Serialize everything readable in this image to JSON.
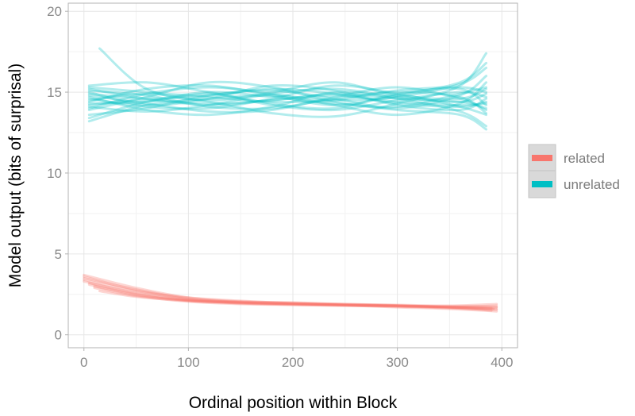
{
  "chart_data": {
    "type": "line",
    "xlabel": "Ordinal position within Block",
    "ylabel": "Model output (bits of surprisal)",
    "xlim": [
      -15,
      415
    ],
    "ylim": [
      -0.8,
      20.5
    ],
    "x_ticks": [
      0,
      100,
      200,
      300,
      400
    ],
    "y_ticks": [
      0,
      5,
      10,
      15,
      20
    ],
    "grid": true,
    "legend_position": "right",
    "legend": [
      {
        "name": "related",
        "color": "#F8766D"
      },
      {
        "name": "unrelated",
        "color": "#00BFC4"
      }
    ],
    "groups": [
      {
        "name": "unrelated",
        "color": "#00BFC4",
        "series": [
          {
            "x": [
              5,
              60,
              120,
              180,
              240,
              300,
              360,
              385
            ],
            "y": [
              13.2,
              14.2,
              14.6,
              14.8,
              14.5,
              14.7,
              15.5,
              16.5
            ]
          },
          {
            "x": [
              5,
              60,
              120,
              180,
              240,
              300,
              360,
              385
            ],
            "y": [
              15.2,
              14.6,
              14.3,
              14.5,
              14.9,
              14.6,
              14.4,
              14.0
            ]
          },
          {
            "x": [
              5,
              60,
              120,
              180,
              240,
              300,
              360,
              385
            ],
            "y": [
              14.0,
              14.9,
              15.3,
              14.9,
              14.2,
              13.6,
              14.3,
              15.6
            ]
          },
          {
            "x": [
              5,
              60,
              120,
              180,
              240,
              300,
              360,
              385
            ],
            "y": [
              14.6,
              14.1,
              14.0,
              14.6,
              15.4,
              14.9,
              14.1,
              13.6
            ]
          },
          {
            "x": [
              15,
              60,
              120,
              180,
              240,
              300,
              360,
              385
            ],
            "y": [
              17.7,
              15.2,
              14.5,
              15.0,
              15.6,
              14.8,
              14.6,
              15.2
            ]
          },
          {
            "x": [
              5,
              60,
              120,
              180,
              240,
              300,
              360,
              385
            ],
            "y": [
              14.3,
              14.4,
              14.9,
              14.2,
              13.9,
              14.5,
              15.0,
              14.7
            ]
          },
          {
            "x": [
              5,
              60,
              120,
              180,
              240,
              300,
              360,
              385
            ],
            "y": [
              13.6,
              14.0,
              14.8,
              15.1,
              14.6,
              14.0,
              14.8,
              16.0
            ]
          },
          {
            "x": [
              5,
              60,
              120,
              180,
              240,
              300,
              360,
              385
            ],
            "y": [
              15.4,
              15.6,
              15.0,
              14.3,
              14.0,
              14.9,
              15.2,
              14.2
            ]
          },
          {
            "x": [
              5,
              60,
              120,
              180,
              240,
              300,
              360,
              385
            ],
            "y": [
              14.8,
              14.3,
              13.8,
              13.9,
              14.7,
              15.3,
              14.6,
              13.9
            ]
          },
          {
            "x": [
              5,
              60,
              120,
              180,
              240,
              300,
              360,
              385
            ],
            "y": [
              13.9,
              14.7,
              15.6,
              15.3,
              14.4,
              13.9,
              13.6,
              12.7
            ]
          },
          {
            "x": [
              5,
              60,
              120,
              180,
              240,
              300,
              360,
              385
            ],
            "y": [
              14.5,
              14.9,
              14.4,
              13.7,
              13.5,
              14.3,
              15.4,
              17.4
            ]
          },
          {
            "x": [
              5,
              60,
              120,
              180,
              240,
              300,
              360,
              385
            ],
            "y": [
              15.0,
              14.2,
              14.6,
              15.4,
              15.1,
              14.2,
              13.9,
              14.6
            ]
          },
          {
            "x": [
              5,
              60,
              120,
              180,
              240,
              300,
              360,
              385
            ],
            "y": [
              14.2,
              14.5,
              14.2,
              14.5,
              14.8,
              14.4,
              14.2,
              14.3
            ]
          },
          {
            "x": [
              5,
              60,
              120,
              180,
              240,
              300,
              360,
              385
            ],
            "y": [
              13.4,
              14.4,
              15.0,
              14.7,
              14.3,
              14.1,
              14.9,
              15.3
            ]
          },
          {
            "x": [
              5,
              60,
              120,
              180,
              240,
              300,
              360,
              385
            ],
            "y": [
              15.1,
              14.8,
              14.1,
              14.0,
              14.6,
              15.0,
              14.7,
              13.7
            ]
          },
          {
            "x": [
              5,
              60,
              120,
              180,
              240,
              300,
              360,
              385
            ],
            "y": [
              14.7,
              13.9,
              13.6,
              14.1,
              15.0,
              14.6,
              13.8,
              12.9
            ]
          },
          {
            "x": [
              5,
              60,
              120,
              180,
              240,
              300,
              360,
              385
            ],
            "y": [
              14.4,
              15.2,
              15.4,
              14.8,
              14.2,
              14.8,
              15.6,
              16.8
            ]
          },
          {
            "x": [
              5,
              60,
              120,
              180,
              240,
              300,
              360,
              385
            ],
            "y": [
              14.9,
              14.6,
              14.8,
              15.2,
              14.9,
              14.3,
              14.1,
              14.4
            ]
          },
          {
            "x": [
              5,
              60,
              120,
              180,
              240,
              300,
              360,
              385
            ],
            "y": [
              14.1,
              13.8,
              14.2,
              14.9,
              15.2,
              14.7,
              14.4,
              14.9
            ]
          },
          {
            "x": [
              5,
              60,
              120,
              180,
              240,
              300,
              360,
              385
            ],
            "y": [
              15.3,
              15.0,
              14.7,
              14.4,
              14.5,
              15.1,
              15.3,
              15.0
            ]
          }
        ]
      },
      {
        "name": "related",
        "color": "#F8766D",
        "series": [
          {
            "x": [
              0,
              50,
              100,
              150,
              200,
              250,
              300,
              350,
              395
            ],
            "y": [
              3.7,
              2.9,
              2.3,
              2.05,
              1.95,
              1.85,
              1.8,
              1.7,
              1.6
            ]
          },
          {
            "x": [
              0,
              50,
              100,
              150,
              200,
              250,
              300,
              350,
              395
            ],
            "y": [
              3.5,
              2.8,
              2.25,
              2.0,
              1.9,
              1.85,
              1.75,
              1.65,
              1.55
            ]
          },
          {
            "x": [
              0,
              50,
              100,
              150,
              200,
              250,
              300,
              350,
              395
            ],
            "y": [
              3.3,
              2.6,
              2.15,
              1.95,
              1.85,
              1.8,
              1.75,
              1.7,
              1.7
            ]
          },
          {
            "x": [
              5,
              50,
              100,
              150,
              200,
              250,
              300,
              350,
              395
            ],
            "y": [
              3.1,
              2.5,
              2.1,
              1.95,
              1.9,
              1.85,
              1.8,
              1.75,
              1.8
            ]
          },
          {
            "x": [
              10,
              50,
              100,
              150,
              200,
              250,
              300,
              350,
              390
            ],
            "y": [
              2.9,
              2.4,
              2.05,
              1.9,
              1.85,
              1.8,
              1.78,
              1.72,
              1.65
            ]
          },
          {
            "x": [
              15,
              50,
              100,
              150,
              200,
              250,
              300,
              350,
              390
            ],
            "y": [
              2.7,
              2.35,
              2.1,
              2.0,
              1.95,
              1.9,
              1.82,
              1.7,
              1.5
            ]
          },
          {
            "x": [
              0,
              50,
              100,
              150,
              200,
              250,
              300,
              350,
              395
            ],
            "y": [
              3.6,
              2.75,
              2.2,
              2.05,
              2.0,
              1.9,
              1.85,
              1.8,
              1.9
            ]
          },
          {
            "x": [
              0,
              50,
              100,
              150,
              200,
              250,
              300,
              350,
              395
            ],
            "y": [
              3.4,
              2.7,
              2.3,
              2.1,
              1.95,
              1.82,
              1.7,
              1.6,
              1.45
            ]
          },
          {
            "x": [
              5,
              50,
              100,
              150,
              200,
              250,
              300,
              350,
              395
            ],
            "y": [
              3.2,
              2.55,
              2.15,
              2.0,
              1.92,
              1.86,
              1.8,
              1.75,
              1.72
            ]
          },
          {
            "x": [
              10,
              50,
              100,
              150,
              200,
              250,
              300,
              350,
              392
            ],
            "y": [
              3.0,
              2.45,
              2.12,
              1.98,
              1.9,
              1.84,
              1.77,
              1.7,
              1.6
            ]
          }
        ]
      }
    ]
  }
}
